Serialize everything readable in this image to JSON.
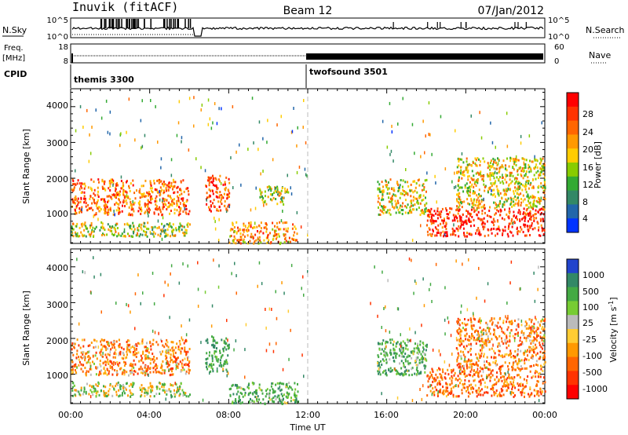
{
  "header": {
    "station": "Inuvik (fitACF)",
    "beam": "Beam 12",
    "date": "07/Jan/2012"
  },
  "top_panels": {
    "nsky_label": "N.Sky",
    "nsky_ticks": [
      "10^5",
      "10^0"
    ],
    "nsearch_label": "N.Search",
    "nsearch_ticks": [
      "10^5",
      "10^0"
    ],
    "freq_label": "Freq.",
    "freq_unit": "[MHz]",
    "freq_ticks": [
      "18",
      "8"
    ],
    "nave_label": "Nave",
    "nave_ticks": [
      "60",
      "0"
    ],
    "cpid_label": "CPID",
    "cpid_modes": [
      {
        "name": "themis 3300",
        "start_hour": 0,
        "end_hour": 12
      },
      {
        "name": "twofsound 3501",
        "start_hour": 12,
        "end_hour": 24
      }
    ]
  },
  "xaxis": {
    "label": "Time UT",
    "ticks": [
      "00:00",
      "04:00",
      "08:00",
      "12:00",
      "16:00",
      "20:00",
      "00:00"
    ],
    "range_hours": [
      0,
      24
    ]
  },
  "power_panel": {
    "ylabel": "Slant Range [km]",
    "yticks": [
      "4000",
      "3000",
      "2000",
      "1000"
    ],
    "colorbar_label": "Power [dB]",
    "colorbar_ticks": [
      "28",
      "24",
      "20",
      "16",
      "12",
      "8",
      "4"
    ],
    "colorbar_colors": [
      "#ff0000",
      "#ff3300",
      "#ff6600",
      "#ff9900",
      "#ffcc00",
      "#88cc00",
      "#33aa33",
      "#338866",
      "#2266aa",
      "#0033ff"
    ]
  },
  "velocity_panel": {
    "ylabel": "Slant Range [km]",
    "yticks": [
      "4000",
      "3000",
      "2000",
      "1000"
    ],
    "colorbar_label": "Velocity [m s",
    "colorbar_label_sup": "-1",
    "colorbar_ticks": [
      "1000",
      "500",
      "100",
      "25",
      "-25",
      "-100",
      "-500",
      "-1000"
    ],
    "colorbar_colors": [
      "#2244cc",
      "#338866",
      "#44aa44",
      "#77cc33",
      "#bbbbbb",
      "#ffcc33",
      "#ff9900",
      "#ff6600",
      "#ff3300",
      "#ff0000"
    ]
  },
  "chart_data": {
    "type": "heatmap",
    "title": "Inuvik (fitACF)",
    "xlabel": "Time UT",
    "ylabel": "Slant Range [km]",
    "xlim_hours": [
      0,
      24
    ],
    "ylim_km": [
      180,
      4500
    ],
    "power_regions": [
      {
        "t": [
          0,
          6
        ],
        "r": [
          1000,
          2000
        ],
        "db": 24
      },
      {
        "t": [
          0,
          6
        ],
        "r": [
          400,
          800
        ],
        "db": 16
      },
      {
        "t": [
          6.8,
          8
        ],
        "r": [
          1100,
          2100
        ],
        "db": 26
      },
      {
        "t": [
          8,
          11.5
        ],
        "r": [
          200,
          800
        ],
        "db": 22
      },
      {
        "t": [
          9.5,
          11
        ],
        "r": [
          1300,
          1800
        ],
        "db": 16
      },
      {
        "t": [
          15.5,
          18
        ],
        "r": [
          1000,
          2000
        ],
        "db": 18
      },
      {
        "t": [
          18,
          24
        ],
        "r": [
          400,
          1200
        ],
        "db": 28
      },
      {
        "t": [
          19.5,
          24
        ],
        "r": [
          1200,
          2600
        ],
        "db": 18
      }
    ],
    "velocity_regions": [
      {
        "t": [
          0,
          6
        ],
        "r": [
          1000,
          2000
        ],
        "v": -300
      },
      {
        "t": [
          0,
          6
        ],
        "r": [
          400,
          800
        ],
        "v": 50
      },
      {
        "t": [
          6.8,
          8
        ],
        "r": [
          1100,
          2100
        ],
        "v": 400
      },
      {
        "t": [
          8,
          11.5
        ],
        "r": [
          200,
          800
        ],
        "v": 300
      },
      {
        "t": [
          15.5,
          18
        ],
        "r": [
          1000,
          2000
        ],
        "v": 300
      },
      {
        "t": [
          18,
          24
        ],
        "r": [
          400,
          1200
        ],
        "v": -400
      },
      {
        "t": [
          19.5,
          24
        ],
        "r": [
          1200,
          2600
        ],
        "v": -300
      }
    ]
  }
}
